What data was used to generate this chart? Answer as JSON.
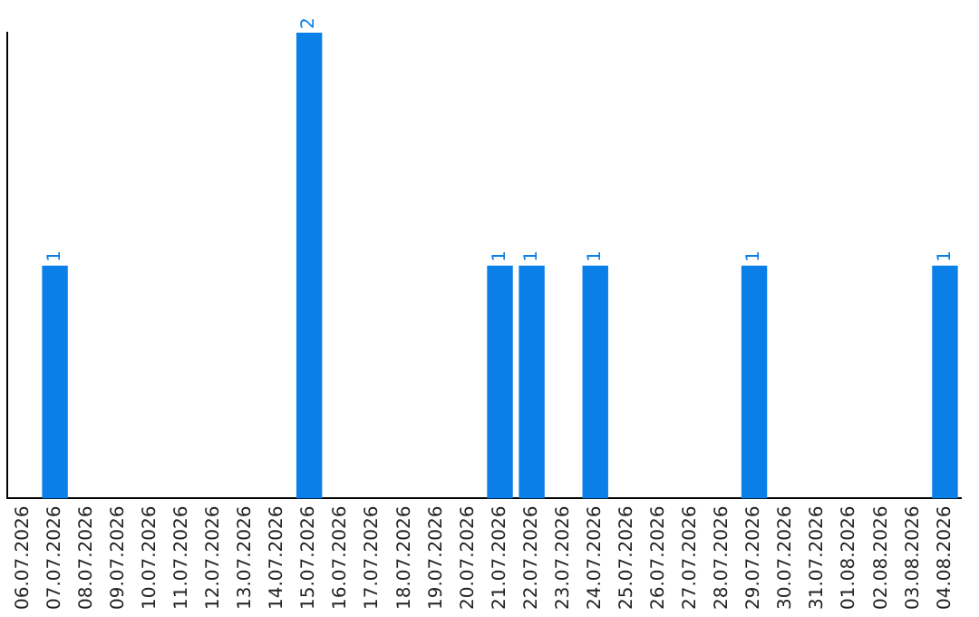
{
  "chart_data": {
    "type": "bar",
    "categories": [
      "06.07.2026",
      "07.07.2026",
      "08.07.2026",
      "09.07.2026",
      "10.07.2026",
      "11.07.2026",
      "12.07.2026",
      "13.07.2026",
      "14.07.2026",
      "15.07.2026",
      "16.07.2026",
      "17.07.2026",
      "18.07.2026",
      "19.07.2026",
      "20.07.2026",
      "21.07.2026",
      "22.07.2026",
      "23.07.2026",
      "24.07.2026",
      "25.07.2026",
      "26.07.2026",
      "27.07.2026",
      "28.07.2026",
      "29.07.2026",
      "30.07.2026",
      "31.07.2026",
      "01.08.2026",
      "02.08.2026",
      "03.08.2026",
      "04.08.2026"
    ],
    "values": [
      null,
      1,
      null,
      null,
      null,
      null,
      null,
      null,
      null,
      2,
      null,
      null,
      null,
      null,
      null,
      1,
      1,
      null,
      1,
      null,
      null,
      null,
      null,
      1,
      null,
      null,
      null,
      null,
      null,
      1
    ],
    "color": "#0a7fe8",
    "data_labels": true,
    "grid": false,
    "legend": false,
    "tick_labels": "x"
  }
}
